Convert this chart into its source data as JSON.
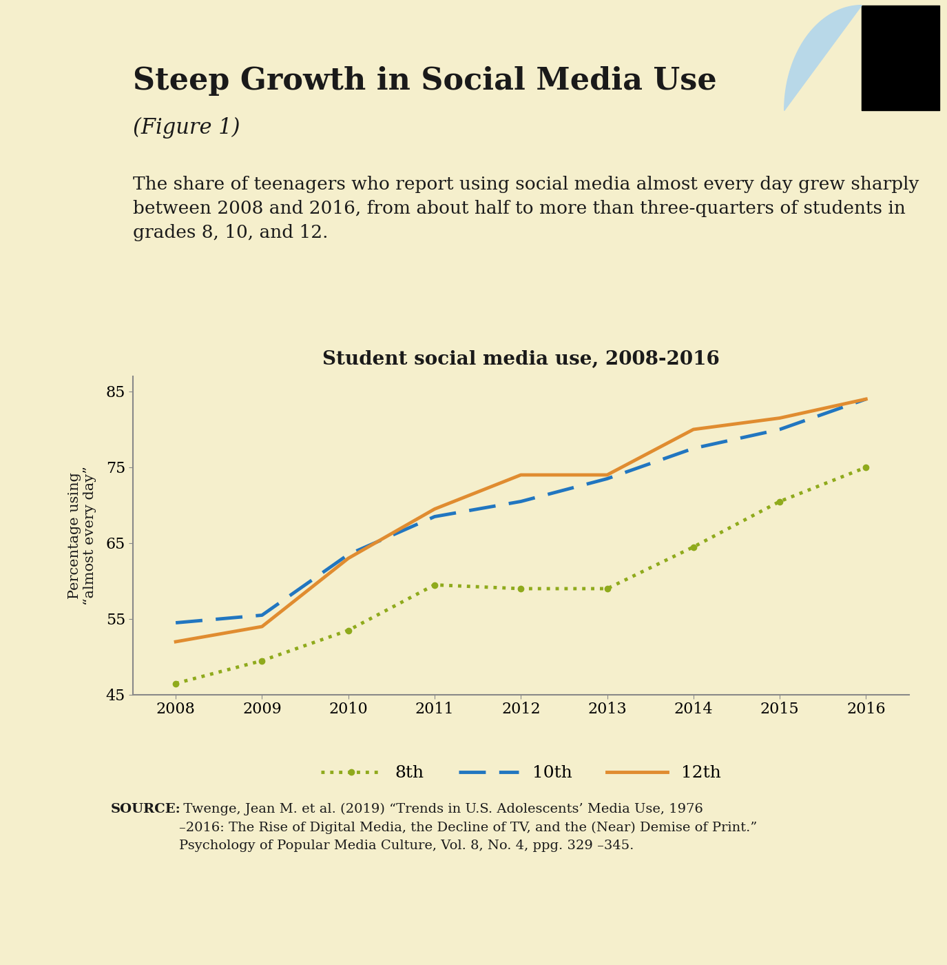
{
  "title_main": "Steep Growth in Social Media Use",
  "title_sub": "(Figure 1)",
  "description": "The share of teenagers who report using social media almost every day grew sharply between 2008 and 2016, from about half to more than three-quarters of students in grades 8, 10, and 12.",
  "chart_title": "Student social media use, 2008-2016",
  "ylabel": "Percentage using\n“almost every day”",
  "source_bold": "SOURCE:",
  "source_text": " Twenge, Jean M. et al. (2019) “Trends in U.S. Adolescents’ Media Use, 1976\n–2016: The Rise of Digital Media, the Decline of TV, and the (Near) Demise of Print.”\nPsychology of Popular Media Culture, Vol. 8, No. 4, ppg. 329 –345.",
  "years": [
    2008,
    2009,
    2010,
    2011,
    2012,
    2013,
    2014,
    2015,
    2016
  ],
  "grade8": [
    46.5,
    49.5,
    53.5,
    59.5,
    59.0,
    59.0,
    64.5,
    70.5,
    75.0
  ],
  "grade10": [
    54.5,
    55.5,
    63.5,
    68.5,
    70.5,
    73.5,
    77.5,
    80.0,
    84.0
  ],
  "grade12": [
    52.0,
    54.0,
    63.0,
    69.5,
    74.0,
    74.0,
    80.0,
    81.5,
    84.0
  ],
  "color_8th": "#8faa1c",
  "color_10th": "#2176c0",
  "color_12th": "#e08c30",
  "bg_top": "#b8d8e8",
  "bg_bottom": "#f5efcc",
  "ylim": [
    45,
    87
  ],
  "yticks": [
    45,
    55,
    65,
    75,
    85
  ],
  "xlim": [
    2007.5,
    2016.5
  ]
}
